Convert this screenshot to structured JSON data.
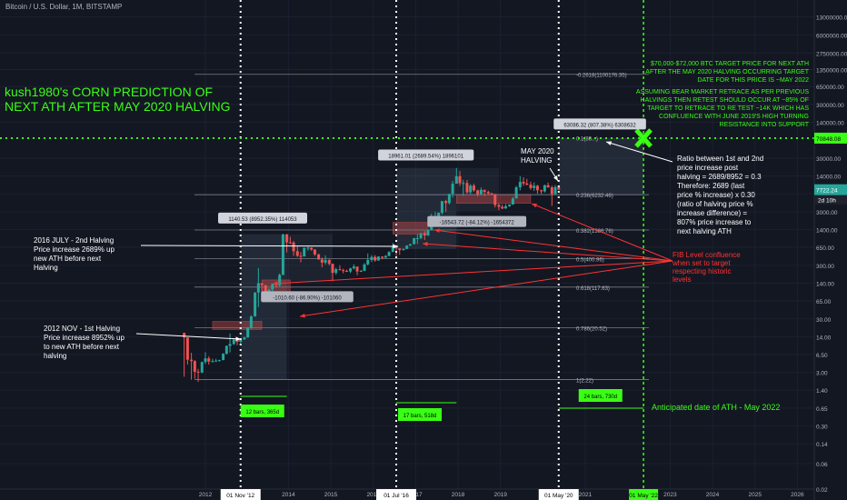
{
  "header": {
    "instrument": "Bitcoin / U.S. Dollar, 1M, BITSTAMP"
  },
  "colors": {
    "background": "#131722",
    "up": "#26a69a",
    "down": "#ef5350",
    "annotation_green": "#39ff14",
    "annotation_red": "#ff3333",
    "white": "#ffffff",
    "level_line": "#787b86",
    "dotted": "#ffffff"
  },
  "chart_data": {
    "type": "candlestick",
    "scale": "log",
    "ylim": [
      0.02,
      110000000
    ],
    "y_ticks": [
      "110000000.00",
      "13000000.00",
      "6000000.00",
      "2750000.00",
      "1350000.00",
      "650000.00",
      "300000.00",
      "140000.00",
      "70000.00",
      "30000.00",
      "14000.00",
      "6500.00",
      "3000.00",
      "1400.00",
      "650.00",
      "300.00",
      "140.00",
      "65.00",
      "30.00",
      "14.00",
      "6.50",
      "3.00",
      "1.40",
      "0.65",
      "0.30",
      "0.14",
      "0.06",
      "0.02"
    ],
    "x_ticks": [
      "2012",
      "2014",
      "2015",
      "2016",
      "2017",
      "2018",
      "2019",
      "2021",
      "2023",
      "2024",
      "2025",
      "2026"
    ],
    "price_labels": {
      "resistance": "70848.08",
      "last": "7722.24",
      "countdown": "2d 10h"
    },
    "halving_dates": [
      "01 Nov '12",
      "01 Jul '16",
      "01 May '20"
    ],
    "target_date": "01 May '22",
    "candles": [
      [
        2011.5,
        16.5,
        13.5,
        16.5,
        2.5
      ],
      [
        2011.58,
        13.5,
        5.2,
        13.5,
        4.2
      ],
      [
        2011.67,
        5.2,
        4.9,
        7.0,
        2.2
      ],
      [
        2011.75,
        4.9,
        3.1,
        5.1,
        2.3
      ],
      [
        2011.83,
        3.1,
        3.0,
        3.5,
        2.0
      ],
      [
        2011.92,
        3.0,
        4.7,
        4.8,
        2.9
      ],
      [
        2012.0,
        4.7,
        5.5,
        7.2,
        4.3
      ],
      [
        2012.08,
        5.5,
        4.8,
        6.0,
        4.2
      ],
      [
        2012.17,
        4.8,
        4.9,
        5.4,
        4.6
      ],
      [
        2012.25,
        4.9,
        5.0,
        5.4,
        4.7
      ],
      [
        2012.33,
        5.0,
        5.1,
        5.2,
        4.8
      ],
      [
        2012.42,
        5.1,
        6.7,
        6.9,
        5.1
      ],
      [
        2012.5,
        6.7,
        9.4,
        9.6,
        6.5
      ],
      [
        2012.58,
        9.4,
        10.2,
        16.0,
        7.1
      ],
      [
        2012.67,
        10.2,
        12.4,
        12.7,
        9.8
      ],
      [
        2012.75,
        12.4,
        11.2,
        13.1,
        9.7
      ],
      [
        2012.83,
        11.2,
        12.5,
        12.6,
        10.5
      ],
      [
        2012.92,
        12.5,
        13.5,
        13.9,
        12.1
      ],
      [
        2013.0,
        13.5,
        20.4,
        21.0,
        13.4
      ],
      [
        2013.08,
        20.4,
        33.4,
        35.0,
        19.5
      ],
      [
        2013.17,
        33.4,
        93.0,
        95.0,
        33.0
      ],
      [
        2013.25,
        93.0,
        139.0,
        266.0,
        50.0
      ],
      [
        2013.33,
        139.0,
        128.0,
        139.0,
        80.0
      ],
      [
        2013.42,
        128.0,
        97.0,
        129.0,
        94.0
      ],
      [
        2013.5,
        97.0,
        106.0,
        111.0,
        65.0
      ],
      [
        2013.58,
        106.0,
        135.0,
        136.0,
        94.0
      ],
      [
        2013.67,
        135.0,
        128.0,
        139.0,
        115.0
      ],
      [
        2013.75,
        128.0,
        198.0,
        211.0,
        120.0
      ],
      [
        2013.83,
        198.0,
        1130.0,
        1163.0,
        200.0
      ],
      [
        2013.92,
        1130.0,
        805.0,
        1160.0,
        522.0
      ],
      [
        2014.0,
        805.0,
        800.0,
        1022.0,
        750.0
      ],
      [
        2014.08,
        800.0,
        550.0,
        850.0,
        450.0
      ],
      [
        2014.17,
        550.0,
        450.0,
        700.0,
        430.0
      ],
      [
        2014.25,
        450.0,
        440.0,
        530.0,
        340.0
      ],
      [
        2014.33,
        440.0,
        630.0,
        650.0,
        435.0
      ],
      [
        2014.42,
        630.0,
        640.0,
        680.0,
        560.0
      ],
      [
        2014.5,
        640.0,
        590.0,
        650.0,
        560.0
      ],
      [
        2014.58,
        590.0,
        480.0,
        600.0,
        450.0
      ],
      [
        2014.67,
        480.0,
        386.0,
        490.0,
        380.0
      ],
      [
        2014.75,
        386.0,
        337.0,
        420.0,
        275.0
      ],
      [
        2014.83,
        337.0,
        376.0,
        460.0,
        310.0
      ],
      [
        2014.92,
        376.0,
        320.0,
        390.0,
        300.0
      ],
      [
        2015.0,
        320.0,
        217.0,
        320.0,
        152.0
      ],
      [
        2015.08,
        217.0,
        254.0,
        270.0,
        200.0
      ],
      [
        2015.17,
        254.0,
        244.0,
        300.0,
        240.0
      ],
      [
        2015.25,
        244.0,
        236.0,
        260.0,
        213.0
      ],
      [
        2015.33,
        236.0,
        230.0,
        250.0,
        225.0
      ],
      [
        2015.42,
        230.0,
        263.0,
        270.0,
        215.0
      ],
      [
        2015.5,
        263.0,
        284.0,
        315.0,
        252.0
      ],
      [
        2015.58,
        284.0,
        230.0,
        285.0,
        196.0
      ],
      [
        2015.67,
        230.0,
        236.0,
        245.0,
        225.0
      ],
      [
        2015.75,
        236.0,
        311.0,
        330.0,
        235.0
      ],
      [
        2015.83,
        311.0,
        377.0,
        500.0,
        300.0
      ],
      [
        2015.92,
        377.0,
        430.0,
        465.0,
        345.0
      ],
      [
        2016.0,
        430.0,
        370.0,
        465.0,
        350.0
      ],
      [
        2016.08,
        370.0,
        437.0,
        445.0,
        365.0
      ],
      [
        2016.17,
        437.0,
        416.0,
        440.0,
        390.0
      ],
      [
        2016.25,
        416.0,
        448.0,
        465.0,
        410.0
      ],
      [
        2016.33,
        448.0,
        531.0,
        550.0,
        440.0
      ],
      [
        2016.42,
        531.0,
        673.0,
        780.0,
        530.0
      ],
      [
        2016.5,
        673.0,
        621.0,
        690.0,
        450.0
      ],
      [
        2016.58,
        621.0,
        575.0,
        630.0,
        470.0
      ],
      [
        2016.67,
        575.0,
        608.0,
        620.0,
        570.0
      ],
      [
        2016.75,
        608.0,
        700.0,
        710.0,
        600.0
      ],
      [
        2016.83,
        700.0,
        745.0,
        755.0,
        690.0
      ],
      [
        2016.92,
        745.0,
        963.0,
        975.0,
        735.0
      ],
      [
        2017.0,
        963.0,
        965.0,
        1150.0,
        750.0
      ],
      [
        2017.08,
        965.0,
        1190.0,
        1200.0,
        915.0
      ],
      [
        2017.17,
        1190.0,
        1080.0,
        1300.0,
        890.0
      ],
      [
        2017.25,
        1080.0,
        1350.0,
        1380.0,
        1060.0
      ],
      [
        2017.33,
        1350.0,
        2300.0,
        2760.0,
        1350.0
      ],
      [
        2017.42,
        2300.0,
        2480.0,
        2990.0,
        2100.0
      ],
      [
        2017.5,
        2480.0,
        2870.0,
        2900.0,
        1830.0
      ],
      [
        2017.58,
        2870.0,
        4740.0,
        4750.0,
        2650.0
      ],
      [
        2017.67,
        4740.0,
        4350.0,
        5000.0,
        2980.0
      ],
      [
        2017.75,
        4350.0,
        6450.0,
        6470.0,
        4100.0
      ],
      [
        2017.83,
        6450.0,
        10000.0,
        11300.0,
        5500.0
      ],
      [
        2017.92,
        10000.0,
        13800.0,
        19660.0,
        10000.0
      ],
      [
        2018.0,
        13800.0,
        10200.0,
        17250.0,
        9000.0
      ],
      [
        2018.08,
        10200.0,
        10300.0,
        11800.0,
        5900.0
      ],
      [
        2018.17,
        10300.0,
        6900.0,
        11700.0,
        6500.0
      ],
      [
        2018.25,
        6900.0,
        9200.0,
        9800.0,
        6400.0
      ],
      [
        2018.33,
        9200.0,
        7500.0,
        9990.0,
        7100.0
      ],
      [
        2018.42,
        7500.0,
        6400.0,
        7750.0,
        5750.0
      ],
      [
        2018.5,
        6400.0,
        7700.0,
        8480.0,
        6070.0
      ],
      [
        2018.58,
        7700.0,
        7000.0,
        7700.0,
        5880.0
      ],
      [
        2018.67,
        7000.0,
        6600.0,
        7400.0,
        6100.0
      ],
      [
        2018.75,
        6600.0,
        6300.0,
        6800.0,
        6200.0
      ],
      [
        2018.83,
        6300.0,
        4000.0,
        6500.0,
        3600.0
      ],
      [
        2018.92,
        4000.0,
        3700.0,
        4300.0,
        3200.0
      ],
      [
        2019.0,
        3700.0,
        3450.0,
        4100.0,
        3350.0
      ],
      [
        2019.08,
        3450.0,
        3800.0,
        4200.0,
        3400.0
      ],
      [
        2019.17,
        3800.0,
        4100.0,
        4100.0,
        3700.0
      ],
      [
        2019.25,
        4100.0,
        5300.0,
        5640.0,
        4050.0
      ],
      [
        2019.33,
        5300.0,
        8550.0,
        9100.0,
        5300.0
      ],
      [
        2019.42,
        8550.0,
        10800.0,
        13880.0,
        7500.0
      ],
      [
        2019.5,
        10800.0,
        10100.0,
        13200.0,
        9100.0
      ],
      [
        2019.58,
        10100.0,
        9600.0,
        12300.0,
        9300.0
      ],
      [
        2019.67,
        9600.0,
        8300.0,
        10900.0,
        7700.0
      ],
      [
        2019.75,
        8300.0,
        9150.0,
        10540.0,
        7300.0
      ],
      [
        2019.83,
        9150.0,
        7550.0,
        9500.0,
        6500.0
      ],
      [
        2019.92,
        7550.0,
        7200.0,
        7750.0,
        6430.0
      ],
      [
        2020.0,
        7200.0,
        9350.0,
        9600.0,
        6850.0
      ],
      [
        2020.08,
        9350.0,
        8550.0,
        10500.0,
        8400.0
      ],
      [
        2020.17,
        8550.0,
        6400.0,
        9200.0,
        3850.0
      ],
      [
        2020.25,
        6400.0,
        8650.0,
        9460.0,
        6150.0
      ],
      [
        2020.33,
        8650.0,
        7722.0,
        9000.0,
        7700.0
      ]
    ],
    "fib_levels": [
      {
        "label": "-0.2618(1100176.35)",
        "value": 1100176.35
      },
      {
        "label": "0.236(6232.46)",
        "value": 6232.46
      },
      {
        "label": "0.382(1366.76)",
        "value": 1366.76
      },
      {
        "label": "0.5(400.96)",
        "value": 400.96
      },
      {
        "label": "0.618(117.63)",
        "value": 117.63
      },
      {
        "label": "0.786(20.52)",
        "value": 20.52
      },
      {
        "label": "1(2.22)",
        "value": 2.22
      }
    ],
    "fib_top_label": "0.1(88...)",
    "range_labels": [
      {
        "text": "1140.53 (8952.35%) 114053",
        "kind": "up"
      },
      {
        "text": "-1010.60 (-86.90%) -101060",
        "kind": "down"
      },
      {
        "text": "18961.01 (2689.54%) 1896101",
        "kind": "up"
      },
      {
        "text": "-16543.72 (-84.12%) -1654372",
        "kind": "down"
      },
      {
        "text": "63086.32 (807.38%) 6308632",
        "kind": "up"
      }
    ],
    "bar_counts": [
      "12 bars, 365d",
      "17 bars, 518d",
      "24 bars, 730d"
    ]
  },
  "annotations": {
    "title": "kush1980's CORN PREDICTION OF NEXT ATH AFTER MAY 2020 HALVING",
    "target_note": "$70,000-$72,000 BTC TARGET PRICE FOR NEXT ATH AFTER THE MAY 2020 HALVING OCCURRING TARGET DATE FOR THIS PRICE IS ~MAY 2022",
    "bear_note": "ASSUMING BEAR MARKET RETRACE AS PER PREVIOUS HALVINGS THEN RETEST SHOULD OCCUR AT ~85% OF TARGET TO RETRACE TO RE TEST ~14K WHICH HAS CONFLUENCE WITH JUNE 2019'S HIGH TURNING RESISTANCE INTO SUPPORT",
    "halving_2012": "2012 NOV - 1st Halving Price increase 8952% up to new ATH before next halving",
    "halving_2016": "2016 JULY - 2nd Halving Price increase 2689% up new ATH before next Halving",
    "halving_2020": "MAY 2020 HALVING",
    "ratio_note": "Ratio between 1st and 2nd price increase post halving = 2689/8952 = 0.3 Therefore: 2689 (last price % increase) x 0.30 (ratio of halving price % increase difference) = 807% price increase to next halving ATH",
    "fib_note": "FIB Level confluence when set to target respecting historic levels",
    "ath_date": "Anticipated date of ATH - May 2022"
  }
}
